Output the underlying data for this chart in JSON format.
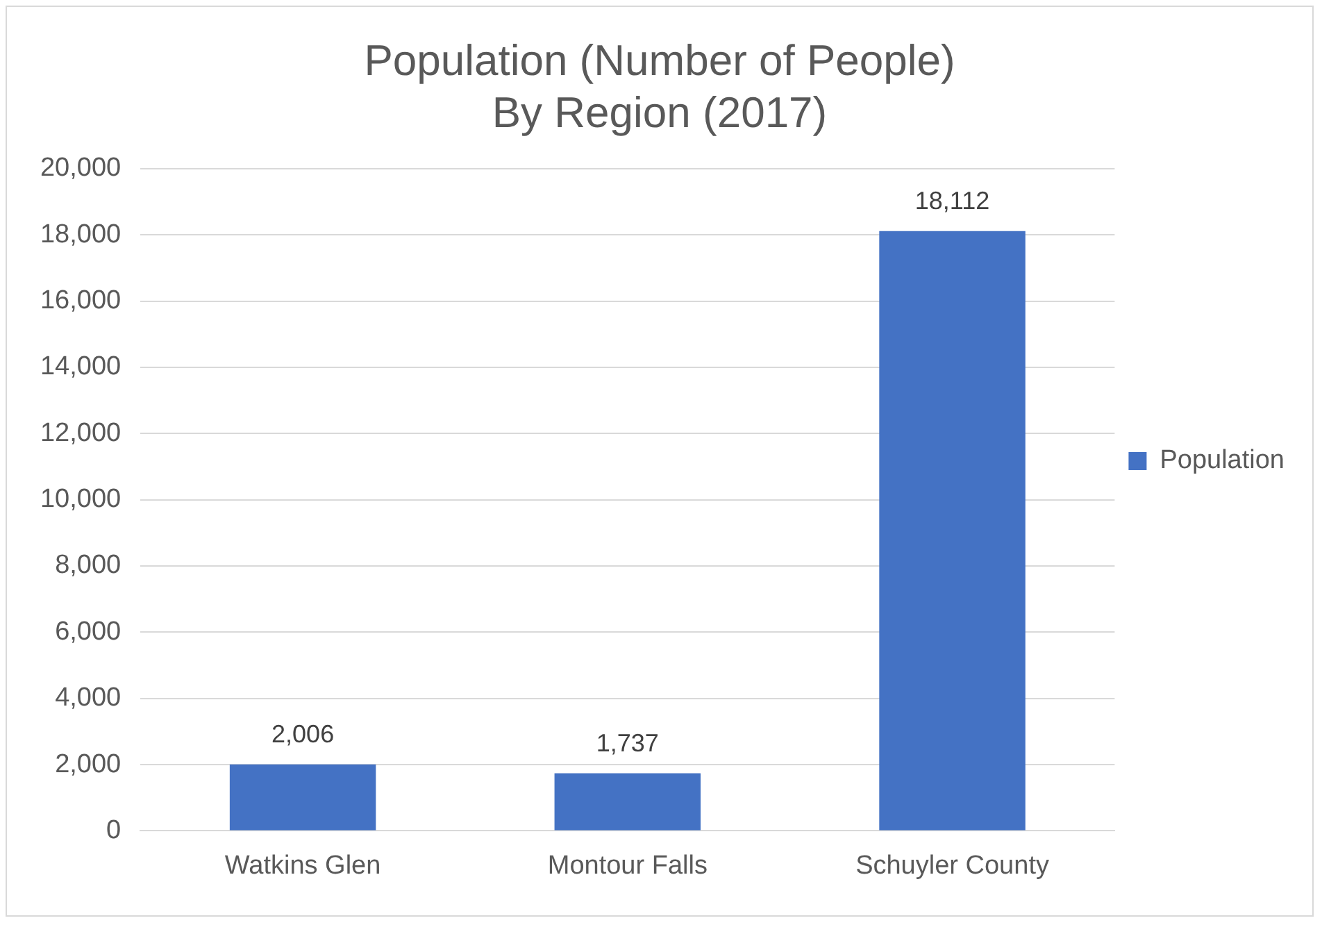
{
  "chart_data": {
    "type": "bar",
    "title": "Population (Number of People)\nBy Region (2017)",
    "categories": [
      "Watkins Glen",
      "Montour Falls",
      "Schuyler County"
    ],
    "series": [
      {
        "name": "Population",
        "color": "#4472c4",
        "values": [
          2006,
          1737,
          18112
        ],
        "value_labels": [
          "2,006",
          "1,737",
          "18,112"
        ]
      }
    ],
    "ylim": [
      0,
      20000
    ],
    "yticks": [
      {
        "value": 0,
        "label": "0"
      },
      {
        "value": 2000,
        "label": "2,000"
      },
      {
        "value": 4000,
        "label": "4,000"
      },
      {
        "value": 6000,
        "label": "6,000"
      },
      {
        "value": 8000,
        "label": "8,000"
      },
      {
        "value": 10000,
        "label": "10,000"
      },
      {
        "value": 12000,
        "label": "12,000"
      },
      {
        "value": 14000,
        "label": "14,000"
      },
      {
        "value": 16000,
        "label": "16,000"
      },
      {
        "value": 18000,
        "label": "18,000"
      },
      {
        "value": 20000,
        "label": "20,000"
      }
    ],
    "grid": "y",
    "legend": "right"
  }
}
